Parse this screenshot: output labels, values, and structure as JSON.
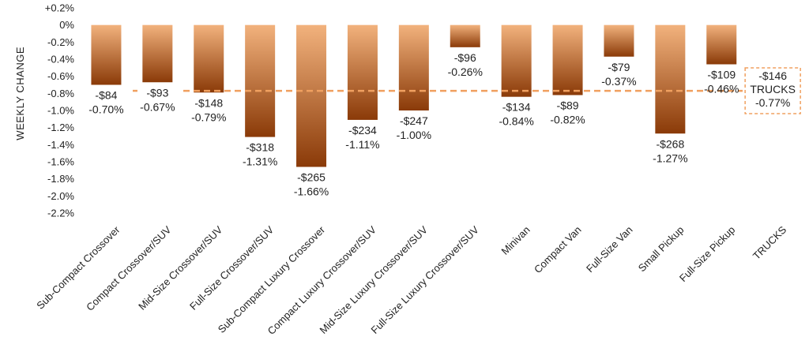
{
  "chart_data": {
    "type": "bar",
    "ylabel": "WEEKLY CHANGE",
    "ylim": [
      -2.2,
      0.2
    ],
    "yticks": [
      0.2,
      0,
      -0.2,
      -0.4,
      -0.6,
      -0.8,
      -1.0,
      -1.2,
      -1.4,
      -1.6,
      -1.8,
      -2.0,
      -2.2
    ],
    "ytick_labels": [
      "+0.2%",
      "0%",
      "-0.2%",
      "-0.4%",
      "-0.6%",
      "-0.8%",
      "-1.0%",
      "-1.2%",
      "-1.4%",
      "-1.6%",
      "-1.8%",
      "-2.0%",
      "-2.2%"
    ],
    "categories": [
      "Sub-Compact Crossover",
      "Compact Crossover/SUV",
      "Mid-Size Crossover/SUV",
      "Full-Size Crossover/SUV",
      "Sub-Compact Luxury Crossover",
      "Compact Luxury Crossover/SUV",
      "Mid-Size Luxury Crossover/SUV",
      "Full-Size Luxury Crossover/SUV",
      "Minivan",
      "Compact Van",
      "Full-Size Van",
      "Small Pickup",
      "Full-Size Pickup",
      "TRUCKS"
    ],
    "values": [
      -0.7,
      -0.67,
      -0.79,
      -1.31,
      -1.66,
      -1.11,
      -1.0,
      -0.26,
      -0.84,
      -0.82,
      -0.37,
      -1.27,
      -0.46,
      -0.77
    ],
    "dollar_labels": [
      "-$84",
      "-$93",
      "-$148",
      "-$318",
      "-$265",
      "-$234",
      "-$247",
      "-$96",
      "-$134",
      "-$89",
      "-$79",
      "-$268",
      "-$109",
      "-$146"
    ],
    "pct_labels": [
      "-0.70%",
      "-0.67%",
      "-0.79%",
      "-1.31%",
      "-1.66%",
      "-1.11%",
      "-1.00%",
      "-0.26%",
      "-0.84%",
      "-0.82%",
      "-0.37%",
      "-1.27%",
      "-0.46%",
      "-0.77%"
    ],
    "reference_line": {
      "value": -0.77,
      "label_title": "TRUCKS",
      "label_dollar": "-$146",
      "label_pct": "-0.77%"
    },
    "grid": false,
    "legend": "none",
    "colors": {
      "bar_top": "#f2b27d",
      "bar_bottom": "#8a3a08",
      "reference": "#f0a060",
      "text": "#222222"
    }
  }
}
